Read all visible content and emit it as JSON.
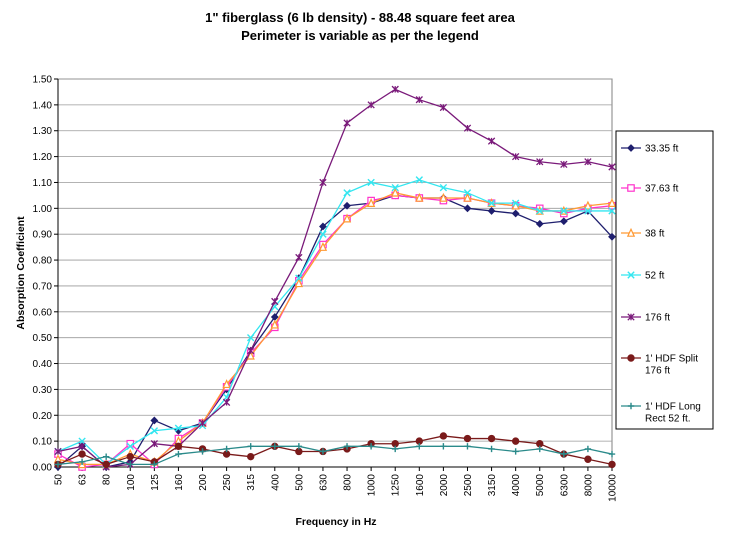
{
  "chart_data": {
    "type": "line",
    "title": "1\" fiberglass (6 lb density) - 88.48 square feet area",
    "subtitle": "Perimeter is variable as per the legend",
    "xlabel": "Frequency in Hz",
    "ylabel": "Absorption Coefficient",
    "ylim": [
      0,
      1.5
    ],
    "y_ticks": [
      "0.00",
      "0.10",
      "0.20",
      "0.30",
      "0.40",
      "0.50",
      "0.60",
      "0.70",
      "0.80",
      "0.90",
      "1.00",
      "1.10",
      "1.20",
      "1.30",
      "1.40",
      "1.50"
    ],
    "grid": "horizontal",
    "legend_position": "right",
    "categories": [
      "50",
      "63",
      "80",
      "100",
      "125",
      "160",
      "200",
      "250",
      "315",
      "400",
      "500",
      "630",
      "800",
      "1000",
      "1250",
      "1600",
      "2000",
      "2500",
      "3150",
      "4000",
      "5000",
      "6300",
      "8000",
      "10000"
    ],
    "series": [
      {
        "name": "33.35 ft",
        "color": "#1f1f6e",
        "marker": "diamond",
        "values": [
          0.0,
          0.08,
          0.0,
          0.02,
          0.18,
          0.14,
          0.17,
          0.3,
          0.45,
          0.58,
          0.73,
          0.93,
          1.01,
          1.02,
          1.05,
          1.04,
          1.04,
          1.0,
          0.99,
          0.98,
          0.94,
          0.95,
          0.99,
          0.89
        ]
      },
      {
        "name": "37.63 ft",
        "color": "#ff33cc",
        "marker": "square",
        "values": [
          0.05,
          0.0,
          0.01,
          0.09,
          0.01,
          0.11,
          0.17,
          0.31,
          0.44,
          0.54,
          0.72,
          0.86,
          0.96,
          1.03,
          1.05,
          1.04,
          1.03,
          1.04,
          1.02,
          1.01,
          1.0,
          0.98,
          1.0,
          1.01
        ]
      },
      {
        "name": "38 ft",
        "color": "#ff9933",
        "marker": "triangle",
        "values": [
          0.03,
          0.01,
          0.01,
          0.05,
          0.02,
          0.1,
          0.17,
          0.32,
          0.43,
          0.55,
          0.71,
          0.85,
          0.96,
          1.02,
          1.06,
          1.04,
          1.04,
          1.04,
          1.02,
          1.01,
          0.99,
          0.99,
          1.01,
          1.02
        ]
      },
      {
        "name": "52 ft",
        "color": "#33e6f0",
        "marker": "x",
        "values": [
          0.06,
          0.1,
          0.01,
          0.08,
          0.14,
          0.15,
          0.16,
          0.27,
          0.5,
          0.62,
          0.73,
          0.9,
          1.06,
          1.1,
          1.08,
          1.11,
          1.08,
          1.06,
          1.02,
          1.02,
          0.99,
          0.99,
          0.99,
          0.99
        ]
      },
      {
        "name": "176 ft",
        "color": "#7a1a7a",
        "marker": "star",
        "values": [
          0.06,
          0.08,
          0.0,
          0.01,
          0.09,
          0.08,
          0.17,
          0.25,
          0.45,
          0.64,
          0.81,
          1.1,
          1.33,
          1.4,
          1.46,
          1.42,
          1.39,
          1.31,
          1.26,
          1.2,
          1.18,
          1.17,
          1.18,
          1.16
        ]
      },
      {
        "name": "1' HDF Split 176 ft",
        "color": "#7a1a1a",
        "marker": "circle",
        "values": [
          0.01,
          0.05,
          0.01,
          0.04,
          0.02,
          0.08,
          0.07,
          0.05,
          0.04,
          0.08,
          0.06,
          0.06,
          0.07,
          0.09,
          0.09,
          0.1,
          0.12,
          0.11,
          0.11,
          0.1,
          0.09,
          0.05,
          0.03,
          0.01
        ]
      },
      {
        "name": "1' HDF Long Rect 52 ft.",
        "color": "#2a8a8a",
        "marker": "plus",
        "values": [
          0.01,
          0.02,
          0.04,
          0.01,
          0.01,
          0.05,
          0.06,
          0.07,
          0.08,
          0.08,
          0.08,
          0.06,
          0.08,
          0.08,
          0.07,
          0.08,
          0.08,
          0.08,
          0.07,
          0.06,
          0.07,
          0.05,
          0.07,
          0.05
        ]
      }
    ]
  }
}
